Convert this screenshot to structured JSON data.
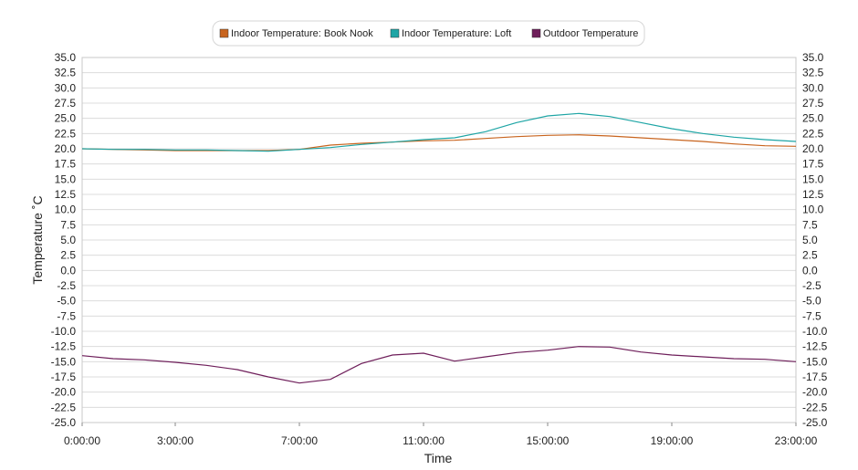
{
  "chart_data": {
    "type": "line",
    "xlabel": "Time",
    "ylabel": "Temperature ˚C",
    "ylim": [
      -25,
      35
    ],
    "y_tick_step": 2.5,
    "xlim": [
      0,
      23
    ],
    "x_tick_hours": [
      0,
      3,
      7,
      11,
      15,
      19,
      23
    ],
    "x_tick_labels": [
      "0:00:00",
      "3:00:00",
      "7:00:00",
      "11:00:00",
      "15:00:00",
      "19:00:00",
      "23:00:00"
    ],
    "grid": true,
    "legend_position": "top-center",
    "x": [
      0,
      1,
      2,
      3,
      4,
      5,
      6,
      7,
      8,
      9,
      10,
      11,
      12,
      13,
      14,
      15,
      16,
      17,
      18,
      19,
      20,
      21,
      22,
      23
    ],
    "series": [
      {
        "name": "Indoor Temperature: Book Nook",
        "color": "#c8641e",
        "values": [
          20.0,
          19.9,
          19.8,
          19.7,
          19.7,
          19.7,
          19.7,
          19.9,
          20.6,
          20.9,
          21.1,
          21.3,
          21.4,
          21.7,
          22.0,
          22.2,
          22.3,
          22.1,
          21.8,
          21.5,
          21.2,
          20.8,
          20.5,
          20.4
        ]
      },
      {
        "name": "Indoor Temperature: Loft",
        "color": "#1ea5a5",
        "values": [
          20.0,
          19.9,
          19.9,
          19.8,
          19.8,
          19.7,
          19.6,
          19.9,
          20.2,
          20.7,
          21.1,
          21.5,
          21.8,
          22.8,
          24.3,
          25.4,
          25.8,
          25.3,
          24.3,
          23.3,
          22.5,
          21.9,
          21.5,
          21.2
        ]
      },
      {
        "name": "Outdoor Temperature",
        "color": "#6e1e5a",
        "values": [
          -14.0,
          -14.5,
          -14.7,
          -15.1,
          -15.6,
          -16.3,
          -17.5,
          -18.5,
          -17.9,
          -15.3,
          -13.9,
          -13.6,
          -14.9,
          -14.2,
          -13.5,
          -13.1,
          -12.5,
          -12.6,
          -13.4,
          -13.9,
          -14.2,
          -14.5,
          -14.6,
          -15.0
        ]
      }
    ]
  }
}
